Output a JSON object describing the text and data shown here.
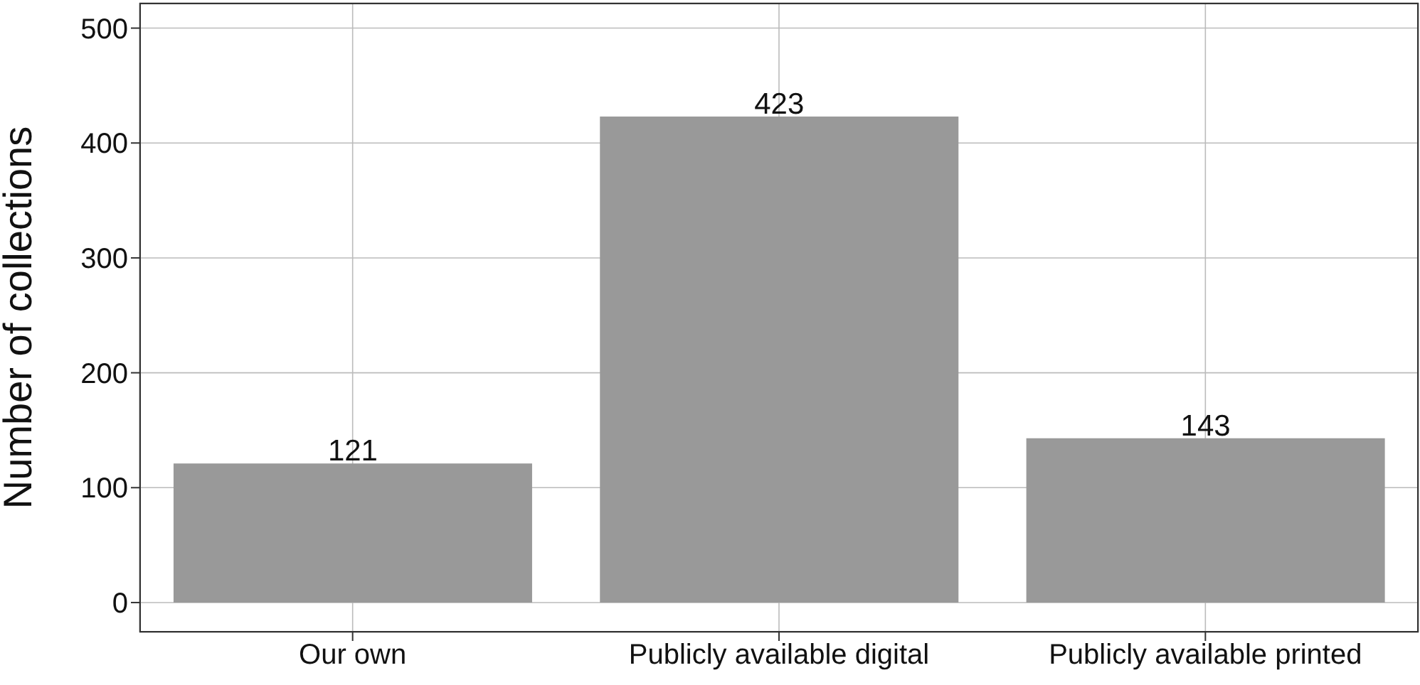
{
  "chart_data": {
    "type": "bar",
    "ylabel": "Number of collections",
    "categories": [
      "Our own",
      "Publicly available digital",
      "Publicly available printed"
    ],
    "values": [
      121,
      423,
      143
    ],
    "color": "#999999",
    "data_labels": true,
    "ylim": [
      -26,
      522
    ],
    "yticks": [
      0,
      100,
      200,
      300,
      400,
      500
    ],
    "grid": true
  }
}
